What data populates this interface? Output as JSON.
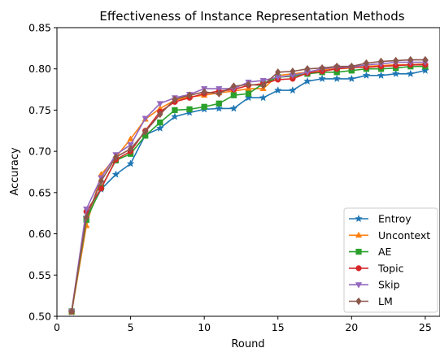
{
  "chart_data": {
    "type": "line",
    "title": "Effectiveness of Instance Representation Methods",
    "xlabel": "Round",
    "ylabel": "Accuracy",
    "xlim": [
      0,
      26
    ],
    "ylim": [
      0.5,
      0.85
    ],
    "xticks": [
      0,
      5,
      10,
      15,
      20,
      25
    ],
    "yticks": [
      0.5,
      0.55,
      0.6,
      0.65,
      0.7,
      0.75,
      0.8,
      0.85
    ],
    "grid": false,
    "legend": "lower-right",
    "x": [
      1,
      2,
      3,
      4,
      5,
      6,
      7,
      8,
      9,
      10,
      11,
      12,
      13,
      14,
      15,
      16,
      17,
      18,
      19,
      20,
      21,
      22,
      23,
      24,
      25
    ],
    "series": [
      {
        "name": "Entroy",
        "color": "#1f77b4",
        "marker": "star",
        "values": [
          0.505,
          0.62,
          0.654,
          0.672,
          0.685,
          0.72,
          0.728,
          0.742,
          0.747,
          0.751,
          0.752,
          0.752,
          0.765,
          0.765,
          0.774,
          0.774,
          0.785,
          0.788,
          0.788,
          0.788,
          0.792,
          0.792,
          0.794,
          0.794,
          0.798
        ]
      },
      {
        "name": "Uncontext",
        "color": "#ff7f0e",
        "marker": "triangle",
        "values": [
          0.505,
          0.61,
          0.672,
          0.693,
          0.715,
          0.739,
          0.752,
          0.762,
          0.766,
          0.768,
          0.771,
          0.773,
          0.776,
          0.776,
          0.792,
          0.794,
          0.796,
          0.799,
          0.8,
          0.801,
          0.803,
          0.804,
          0.805,
          0.805,
          0.806
        ]
      },
      {
        "name": "AE",
        "color": "#2ca02c",
        "marker": "square",
        "values": [
          0.506,
          0.617,
          0.656,
          0.689,
          0.697,
          0.719,
          0.735,
          0.75,
          0.751,
          0.754,
          0.758,
          0.768,
          0.77,
          0.782,
          0.79,
          0.791,
          0.794,
          0.796,
          0.796,
          0.798,
          0.8,
          0.8,
          0.801,
          0.803,
          0.803
        ]
      },
      {
        "name": "Topic",
        "color": "#d62728",
        "marker": "circle",
        "values": [
          0.506,
          0.627,
          0.655,
          0.69,
          0.7,
          0.725,
          0.748,
          0.76,
          0.765,
          0.77,
          0.773,
          0.775,
          0.78,
          0.782,
          0.787,
          0.788,
          0.795,
          0.797,
          0.8,
          0.802,
          0.802,
          0.803,
          0.804,
          0.805,
          0.805
        ]
      },
      {
        "name": "Skip",
        "color": "#9467bd",
        "marker": "triangle-down",
        "values": [
          0.506,
          0.63,
          0.668,
          0.696,
          0.708,
          0.74,
          0.758,
          0.765,
          0.769,
          0.776,
          0.776,
          0.776,
          0.784,
          0.786,
          0.79,
          0.792,
          0.796,
          0.8,
          0.802,
          0.802,
          0.805,
          0.806,
          0.808,
          0.808,
          0.808
        ]
      },
      {
        "name": "LM",
        "color": "#8c564b",
        "marker": "diamond",
        "values": [
          0.506,
          0.62,
          0.664,
          0.693,
          0.703,
          0.724,
          0.745,
          0.763,
          0.768,
          0.772,
          0.77,
          0.779,
          0.781,
          0.78,
          0.796,
          0.797,
          0.8,
          0.801,
          0.803,
          0.803,
          0.807,
          0.809,
          0.81,
          0.811,
          0.811
        ]
      }
    ]
  }
}
